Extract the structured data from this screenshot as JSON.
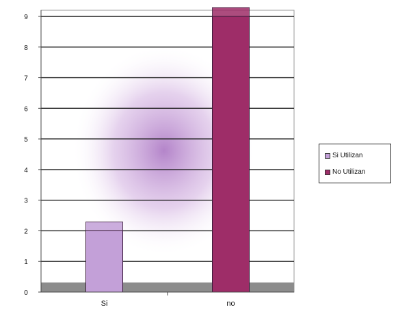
{
  "chart_data": {
    "type": "bar",
    "stacked": true,
    "categories": [
      "Si",
      "no"
    ],
    "series": [
      {
        "name": "Si Utilizan",
        "values": [
          2,
          0
        ],
        "color": "#c3a0d8"
      },
      {
        "name": "No Utilizan",
        "values": [
          0,
          9
        ],
        "color": "#9e2d68"
      }
    ],
    "yticks": [
      "0",
      "1",
      "2",
      "3",
      "4",
      "5",
      "6",
      "7",
      "8",
      "9"
    ],
    "ylim": [
      0,
      9
    ],
    "grid": true,
    "legend_position": "right",
    "title": "",
    "xlabel": "",
    "ylabel": ""
  }
}
